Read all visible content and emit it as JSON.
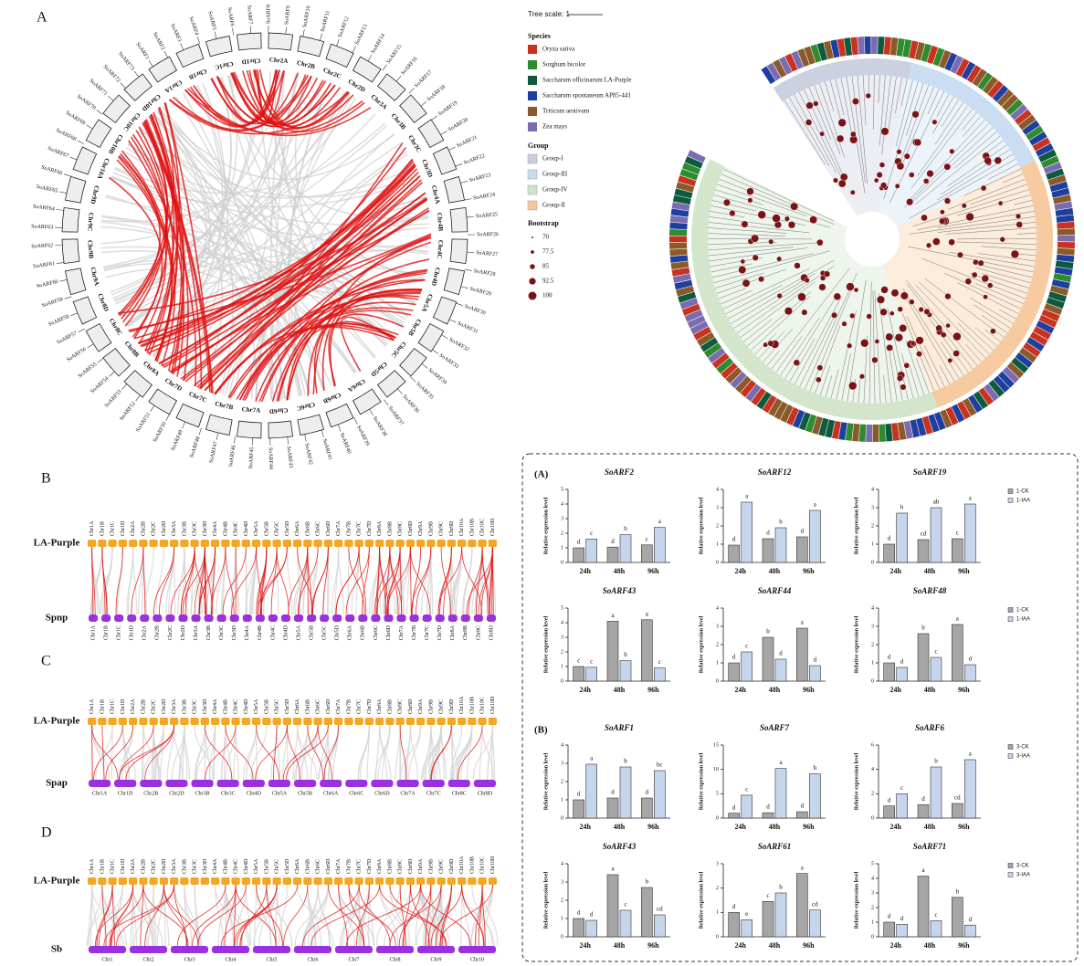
{
  "panel_labels": {
    "a": "A",
    "b": "B",
    "c": "C",
    "d": "D"
  },
  "circos": {
    "chromosomes": [
      "Chr1A",
      "Chr1B",
      "Chr1C",
      "Chr1D",
      "Chr2A",
      "Chr2B",
      "Chr2C",
      "Chr2D",
      "Chr3A",
      "Chr3B",
      "Chr3C",
      "Chr3D",
      "Chr4A",
      "Chr4B",
      "Chr4C",
      "Chr4D",
      "Chr5A",
      "Chr5B",
      "Chr5C",
      "Chr5D",
      "Chr6A",
      "Chr6B",
      "Chr6C",
      "Chr6D",
      "Chr7A",
      "Chr7B",
      "Chr7C",
      "Chr7D",
      "Chr8A",
      "Chr8B",
      "Chr8C",
      "Chr8D",
      "Chr9A",
      "Chr9B",
      "Chr9C",
      "Chr9D",
      "Chr10A",
      "Chr10B",
      "Chr10C",
      "Chr10D"
    ],
    "genes": [
      "SoARF1",
      "SoARF2",
      "SoARF3",
      "SoARF4",
      "SoARF5",
      "SoARF6",
      "SoARF7",
      "SoARF8",
      "SoARF9",
      "SoARF10",
      "SoARF11",
      "SoARF12",
      "SoARF13",
      "SoARF14",
      "SoARF15",
      "SoARF16",
      "SoARF17",
      "SoARF18",
      "SoARF19",
      "SoARF20",
      "SoARF21",
      "SoARF22",
      "SoARF23",
      "SoARF24",
      "SoARF25",
      "SoARF26",
      "SoARF27",
      "SoARF28",
      "SoARF29",
      "SoARF30",
      "SoARF31",
      "SoARF32",
      "SoARF33",
      "SoARF34",
      "SoARF35",
      "SoARF36",
      "SoARF37",
      "SoARF38",
      "SoARF39",
      "SoARF40",
      "SoARF41",
      "SoARF42",
      "SoARF43",
      "SoARF44",
      "SoARF45",
      "SoARF46",
      "SoARF47",
      "SoARF48",
      "SoARF49",
      "SoARF50",
      "SoARF51",
      "SoARF52",
      "SoARF53",
      "SoARF54",
      "SoARF55",
      "SoARF56",
      "SoARF57",
      "SoARF58",
      "SoARF59",
      "SoARF60",
      "SoARF61",
      "SoARF62",
      "SoARF63",
      "SoARF64",
      "SoARF65",
      "SoARF66",
      "SoARF67",
      "SoARF68",
      "SoARF69",
      "SoARF70",
      "SoARF71",
      "SoARF72",
      "SoARF73"
    ],
    "ribbon_color": "#e01010"
  },
  "tree": {
    "scale_label": "Tree scale: 1",
    "species_title": "Species",
    "species": [
      {
        "name": "Oryza sativa",
        "color": "#c8321e"
      },
      {
        "name": "Sorghum bicolor",
        "color": "#2e8b2e"
      },
      {
        "name": "Saccharum officinarum LA-Purple",
        "color": "#0d5a3e"
      },
      {
        "name": "Saccharum spontaneum AP85-441",
        "color": "#1f3fa0"
      },
      {
        "name": "Triticum aestivum",
        "color": "#8b5a2b"
      },
      {
        "name": "Zea mays",
        "color": "#7b6bb0"
      }
    ],
    "group_title": "Group",
    "groups": [
      {
        "name": "Group-I",
        "color": "#c9cde0"
      },
      {
        "name": "Group-III",
        "color": "#c8dcef"
      },
      {
        "name": "Group-IV",
        "color": "#cfe3c8"
      },
      {
        "name": "Group-II",
        "color": "#f5c89a"
      }
    ],
    "bootstrap_title": "Bootstrap",
    "bootstrap": [
      70,
      77.5,
      85,
      92.5,
      100
    ],
    "dot_color": "#7a1414"
  },
  "synteny": {
    "query": "LA-Purple",
    "query_color": "#f5a623",
    "target_color": "#9b30e0",
    "panels": [
      {
        "target": "Spnp",
        "target_chromosomes": [
          "Chr1A",
          "Chr1B",
          "Chr1C",
          "Chr1D",
          "Chr2A",
          "Chr2B",
          "Chr2C",
          "Chr2D",
          "Chr3A",
          "Chr3B",
          "Chr3C",
          "Chr3D",
          "Chr4A",
          "Chr4B",
          "Chr4C",
          "Chr4D",
          "Chr5A",
          "Chr5B",
          "Chr5C",
          "Chr5D",
          "Chr6A",
          "Chr6B",
          "Chr6C",
          "Chr6D",
          "Chr7A",
          "Chr7B",
          "Chr7C",
          "Chr7D",
          "Chr8A",
          "Chr8B",
          "Chr8C",
          "Chr8D"
        ]
      },
      {
        "target": "Spap",
        "target_chromosomes": [
          "Chr1A",
          "Chr1D",
          "Chr2B",
          "Chr2D",
          "Chr3B",
          "Chr3C",
          "Chr4D",
          "Chr5A",
          "Chr5B",
          "Chr6A",
          "Chr6C",
          "Chr6D",
          "Chr7A",
          "Chr7C",
          "Chr8C",
          "Chr8D"
        ]
      },
      {
        "target": "Sb",
        "target_chromosomes": [
          "Chr1",
          "Chr2",
          "Chr3",
          "Chr4",
          "Chr5",
          "Chr6",
          "Chr7",
          "Chr8",
          "Chr9",
          "Chr10"
        ]
      }
    ]
  },
  "section_labels": [
    "(A)",
    "(B)"
  ],
  "chart_data": [
    {
      "type": "bar",
      "title": "SoARF2",
      "ylabel": "Relative expression level",
      "categories": [
        "24h",
        "48h",
        "96h"
      ],
      "ylim": [
        0,
        5
      ],
      "yticks": [
        0,
        1,
        2,
        3,
        4,
        5
      ],
      "series": [
        {
          "color": "#a6a6a6",
          "values": [
            1.0,
            1.05,
            1.2
          ],
          "letters": [
            "d",
            "d",
            "c"
          ]
        },
        {
          "color": "#c5d6ec",
          "values": [
            1.6,
            1.9,
            2.4
          ],
          "letters": [
            "c",
            "b",
            "a"
          ]
        }
      ]
    },
    {
      "type": "bar",
      "title": "SoARF12",
      "ylabel": "Relative expression level",
      "categories": [
        "24h",
        "48h",
        "96h"
      ],
      "ylim": [
        0,
        4
      ],
      "yticks": [
        0,
        1,
        2,
        3,
        4
      ],
      "series": [
        {
          "color": "#a6a6a6",
          "values": [
            0.95,
            1.3,
            1.4
          ],
          "letters": [
            "d",
            "d",
            "d"
          ]
        },
        {
          "color": "#c5d6ec",
          "values": [
            3.3,
            1.9,
            2.85
          ],
          "letters": [
            "a",
            "b",
            "a"
          ]
        }
      ]
    },
    {
      "type": "bar",
      "title": "SoARF19",
      "ylabel": "Relative expression level",
      "categories": [
        "24h",
        "48h",
        "96h"
      ],
      "ylim": [
        0,
        4
      ],
      "yticks": [
        0,
        1,
        2,
        3,
        4
      ],
      "legend": "right",
      "series": [
        {
          "name": "1-CK",
          "color": "#a6a6a6",
          "values": [
            1.0,
            1.25,
            1.3
          ],
          "letters": [
            "d",
            "cd",
            "c"
          ]
        },
        {
          "name": "1-IAA",
          "color": "#c5d6ec",
          "values": [
            2.7,
            3.0,
            3.2
          ],
          "letters": [
            "b",
            "ab",
            "a"
          ]
        }
      ]
    },
    {
      "type": "bar",
      "title": "SoARF43",
      "ylabel": "Relative expression level",
      "categories": [
        "24h",
        "48h",
        "96h"
      ],
      "ylim": [
        0,
        5
      ],
      "yticks": [
        0,
        1,
        2,
        3,
        4,
        5
      ],
      "series": [
        {
          "color": "#a6a6a6",
          "values": [
            1.0,
            4.1,
            4.2
          ],
          "letters": [
            "c",
            "a",
            "a"
          ]
        },
        {
          "color": "#c5d6ec",
          "values": [
            0.95,
            1.4,
            0.9
          ],
          "letters": [
            "c",
            "b",
            "c"
          ]
        }
      ]
    },
    {
      "type": "bar",
      "title": "SoARF44",
      "ylabel": "Relative expression level",
      "categories": [
        "24h",
        "48h",
        "96h"
      ],
      "ylim": [
        0,
        4
      ],
      "yticks": [
        0,
        1,
        2,
        3,
        4
      ],
      "series": [
        {
          "color": "#a6a6a6",
          "values": [
            1.0,
            2.4,
            2.9
          ],
          "letters": [
            "d",
            "b",
            "a"
          ]
        },
        {
          "color": "#c5d6ec",
          "values": [
            1.6,
            1.2,
            0.85
          ],
          "letters": [
            "c",
            "d",
            "d"
          ]
        }
      ]
    },
    {
      "type": "bar",
      "title": "SoARF48",
      "ylabel": "Relative expression level",
      "categories": [
        "24h",
        "48h",
        "96h"
      ],
      "ylim": [
        0,
        4
      ],
      "yticks": [
        0,
        1,
        2,
        3,
        4
      ],
      "legend": "right",
      "series": [
        {
          "name": "1-CK",
          "color": "#a6a6a6",
          "values": [
            1.0,
            2.6,
            3.1
          ],
          "letters": [
            "d",
            "b",
            "a"
          ]
        },
        {
          "name": "1-IAA",
          "color": "#c5d6ec",
          "values": [
            0.75,
            1.3,
            0.9
          ],
          "letters": [
            "d",
            "c",
            "d"
          ]
        }
      ]
    },
    {
      "type": "bar",
      "title": "SoARF1",
      "ylabel": "Relative expression level",
      "categories": [
        "24h",
        "48h",
        "96h"
      ],
      "ylim": [
        0,
        4
      ],
      "yticks": [
        0,
        1,
        2,
        3,
        4
      ],
      "series": [
        {
          "color": "#a6a6a6",
          "values": [
            1.0,
            1.1,
            1.1
          ],
          "letters": [
            "d",
            "d",
            "d"
          ]
        },
        {
          "color": "#c5d6ec",
          "values": [
            2.95,
            2.8,
            2.6
          ],
          "letters": [
            "a",
            "b",
            "bc"
          ]
        }
      ]
    },
    {
      "type": "bar",
      "title": "SoARF7",
      "ylabel": "Relative expression level",
      "categories": [
        "24h",
        "48h",
        "96h"
      ],
      "ylim": [
        0,
        15
      ],
      "yticks": [
        0,
        5,
        10,
        15
      ],
      "series": [
        {
          "color": "#a6a6a6",
          "values": [
            1.0,
            1.1,
            1.3
          ],
          "letters": [
            "d",
            "d",
            "d"
          ]
        },
        {
          "color": "#c5d6ec",
          "values": [
            4.7,
            10.2,
            9.1
          ],
          "letters": [
            "c",
            "a",
            "b"
          ]
        }
      ]
    },
    {
      "type": "bar",
      "title": "SoARF6",
      "ylabel": "Relative expression level",
      "categories": [
        "24h",
        "48h",
        "96h"
      ],
      "ylim": [
        0,
        6
      ],
      "yticks": [
        0,
        2,
        4,
        6
      ],
      "legend": "right",
      "series": [
        {
          "name": "3-CK",
          "color": "#a6a6a6",
          "values": [
            1.0,
            1.1,
            1.2
          ],
          "letters": [
            "d",
            "d",
            "cd"
          ]
        },
        {
          "name": "3-IAA",
          "color": "#c5d6ec",
          "values": [
            2.0,
            4.2,
            4.8
          ],
          "letters": [
            "c",
            "b",
            "a"
          ]
        }
      ]
    },
    {
      "type": "bar",
      "title": "SoARF43",
      "ylabel": "Relative expression level",
      "categories": [
        "24h",
        "48h",
        "96h"
      ],
      "ylim": [
        0,
        4
      ],
      "yticks": [
        0,
        1,
        2,
        3,
        4
      ],
      "series": [
        {
          "color": "#a6a6a6",
          "values": [
            1.0,
            3.4,
            2.7
          ],
          "letters": [
            "d",
            "a",
            "b"
          ]
        },
        {
          "color": "#c5d6ec",
          "values": [
            0.9,
            1.45,
            1.2
          ],
          "letters": [
            "d",
            "c",
            "cd"
          ]
        }
      ]
    },
    {
      "type": "bar",
      "title": "SoARF61",
      "ylabel": "Relative expression level",
      "categories": [
        "24h",
        "48h",
        "96h"
      ],
      "ylim": [
        0,
        3
      ],
      "yticks": [
        0,
        1,
        2,
        3
      ],
      "series": [
        {
          "color": "#a6a6a6",
          "values": [
            1.0,
            1.45,
            2.6
          ],
          "letters": [
            "d",
            "c",
            "a"
          ]
        },
        {
          "color": "#c5d6ec",
          "values": [
            0.7,
            1.8,
            1.1
          ],
          "letters": [
            "e",
            "b",
            "cd"
          ]
        }
      ]
    },
    {
      "type": "bar",
      "title": "SoARF71",
      "ylabel": "Relative expression level",
      "categories": [
        "24h",
        "48h",
        "96h"
      ],
      "ylim": [
        0,
        5
      ],
      "yticks": [
        0,
        1,
        2,
        3,
        4,
        5
      ],
      "legend": "right",
      "series": [
        {
          "name": "3-CK",
          "color": "#a6a6a6",
          "values": [
            1.0,
            4.15,
            2.7
          ],
          "letters": [
            "d",
            "a",
            "b"
          ]
        },
        {
          "name": "3-IAA",
          "color": "#c5d6ec",
          "values": [
            0.85,
            1.1,
            0.8
          ],
          "letters": [
            "d",
            "c",
            "d"
          ]
        }
      ]
    }
  ]
}
